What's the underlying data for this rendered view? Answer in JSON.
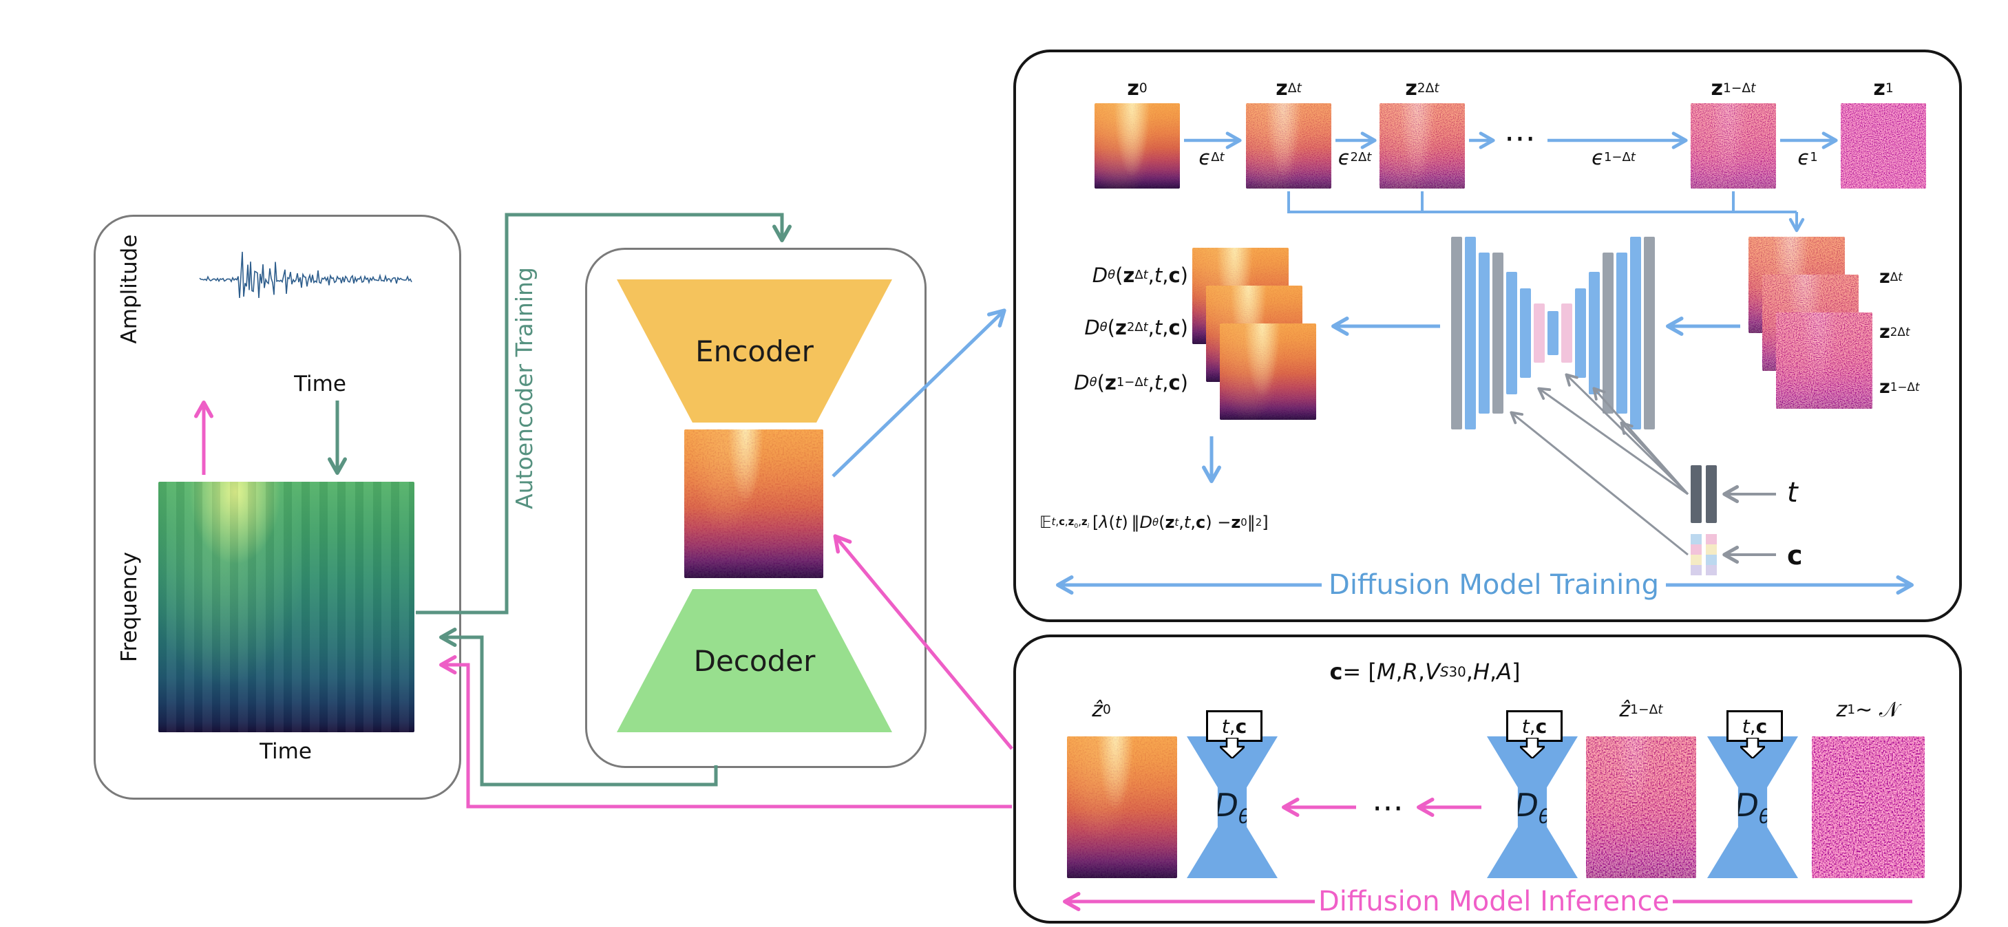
{
  "colors": {
    "arrow_blue": "#74ade8",
    "arrow_pink": "#ee5ec6",
    "arrow_green": "#5a9482",
    "arrow_gray": "#8f959e",
    "caption_blue": "#5b9fd8",
    "caption_pink": "#f05fc8",
    "encoder_fill": "#f5c35c",
    "decoder_fill": "#98df8e",
    "unet_blue": "#7db3ea",
    "unet_gray": "#9aa2ac",
    "panel_border_gray": "#7a7a7a",
    "panel_border_dark": "#161616"
  },
  "left_panel": {
    "amplitude": "Amplitude",
    "time_top": "Time",
    "frequency": "Frequency",
    "time_bottom": "Time"
  },
  "autoencoder": {
    "rotated_label": "Autoencoder Training",
    "encoder": "Encoder",
    "decoder": "Decoder"
  },
  "training": {
    "caption": "Diffusion Model Training",
    "dots": "⋯",
    "chain_labels_html": [
      "<b>z</b><sub>0</sub>",
      "<b>z</b><sub>Δ<i>t</i></sub>",
      "<b>z</b><sub>2Δ<i>t</i></sub>",
      "<b>z</b><sub>1−Δ<i>t</i></sub>",
      "<b>z</b><sub>1</sub>"
    ],
    "eps_labels_html": [
      "<i>ϵ</i><sub>Δ<i>t</i></sub>",
      "<i>ϵ</i><sub>2Δ<i>t</i></sub>",
      "<i>ϵ</i><sub>1−Δ<i>t</i></sub>",
      "<i>ϵ</i><sub>1</sub>"
    ],
    "output_labels_html": [
      "<i>D</i><sub><i>θ</i></sub>(<b>z</b><sub>Δ<i>t</i></sub>, <i>t</i>, <b>c</b>)",
      "<i>D</i><sub><i>θ</i></sub>(<b>z</b><sub>2Δ<i>t</i></sub>, <i>t</i>, <b>c</b>)",
      "<i>D</i><sub><i>θ</i></sub>(<b>z</b><sub>1−Δ<i>t</i></sub>, <i>t</i>, <b>c</b>)"
    ],
    "stack_labels_html": [
      "<b>z</b><sub>Δ<i>t</i></sub>",
      "<b>z</b><sub>2Δ<i>t</i></sub>",
      "<b>z</b><sub>1−Δ<i>t</i></sub>"
    ],
    "loss_html": "𝔼<sub><i>t</i>,<b>c</b>,<b>z</b><sub>0</sub>,<b>z</b><sub><i>i</i></sub></sub>&#8201;[<i>λ</i>(<i>t</i>)&#8201;‖<i>D</i><sub><i>θ</i></sub>(<b>z</b><sub><i>t</i></sub>, <i>t</i>, <b>c</b>) − <b>z</b><sub>0</sub>‖<sup>2</sup>]",
    "t_label_html": "<i>t</i>",
    "c_label_html": "<b>c</b>"
  },
  "inference": {
    "caption": "Diffusion Model Inference",
    "dots": "⋯",
    "condition_html": "<b>c</b> = [<i>M</i>, <i>R</i>, <i>V</i><sub><i>S</i>30</sub>, <i>H</i>, <i>A</i>]",
    "z0_label_html": "<i>ẑ</i><sub>0</sub>",
    "z1mdt_label_html": "<i>ẑ</i><sub>1−Δ<i>t</i></sub>",
    "z1_label_html": "<i>z</i><sub>1</sub> ∼ 𝒩",
    "denoiser_html": "<i>D</i><sub><i>θ</i></sub>",
    "tc_label_html": "<i>t</i>, <b>c</b>"
  }
}
